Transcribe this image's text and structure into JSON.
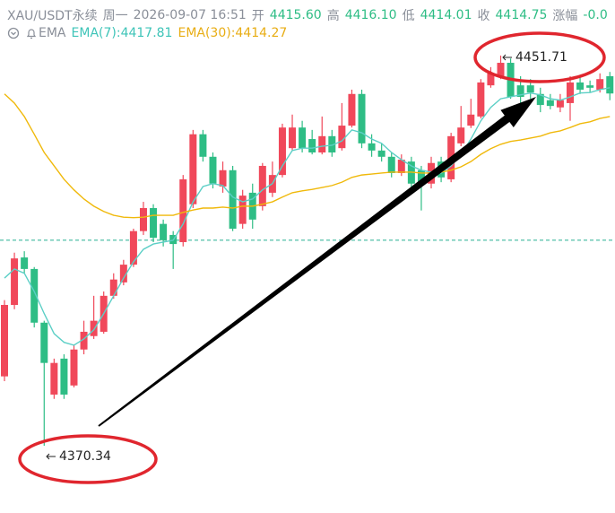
{
  "chart_data": {
    "type": "candlestick",
    "header": {
      "symbol": "XAU/USDT永续",
      "weekday": "周一",
      "time": "2026-09-07 16:51",
      "open_label": "开",
      "open": "4415.60",
      "high_label": "高",
      "high": "4416.10",
      "low_label": "低",
      "low": "4414.01",
      "close_label": "收",
      "close": "4414.75",
      "change_label": "涨幅",
      "change": "-0.0"
    },
    "indicator": {
      "name": "EMA",
      "ema7": "EMA(7):4417.81",
      "ema30": "EMA(30):4414.27"
    },
    "up_color": "#f0485a",
    "down_color": "#2ebd85",
    "open": [
      4384.8,
      4399.7,
      4409.6,
      4407.2,
      4396.0,
      4381.0,
      4388.5,
      4382.9,
      4390.4,
      4393.2,
      4394.1,
      4401.6,
      4404.4,
      4408.1,
      4415.1,
      4419.9,
      4416.6,
      4414.3,
      4412.8,
      4420.7,
      4435.3,
      4430.6,
      4424.4,
      4427.8,
      4416.6,
      4423.1,
      4420.3,
      4423.1,
      4426.8,
      4432.4,
      4436.7,
      4434.3,
      4431.5,
      4434.9,
      4432.4,
      4437.1,
      4443.7,
      4433.4,
      4431.9,
      4430.6,
      4427.2,
      4429.6,
      4427.8,
      4425.0,
      4429.6,
      4425.9,
      4433.4,
      4437.1,
      4439.0,
      4445.5,
      4447.4,
      4450.2,
      4445.5,
      4445.5,
      4443.7,
      4442.4,
      4440.9,
      4441.8,
      4446.1,
      4445.5,
      4444.6,
      4447.4
    ],
    "high": [
      4400.7,
      4410.6,
      4410.9,
      4407.6,
      4396.4,
      4388.5,
      4389.4,
      4391.3,
      4396.4,
      4401.6,
      4402.5,
      4406.3,
      4409.1,
      4415.6,
      4421.2,
      4420.7,
      4417.5,
      4415.1,
      4426.8,
      4436.2,
      4436.2,
      4431.5,
      4429.6,
      4428.7,
      4423.7,
      4425.0,
      4429.3,
      4429.6,
      4437.5,
      4439.4,
      4438.1,
      4436.2,
      4439.0,
      4436.2,
      4441.8,
      4444.6,
      4444.6,
      4435.3,
      4433.4,
      4431.5,
      4431.1,
      4430.6,
      4428.7,
      4430.6,
      4430.6,
      4435.6,
      4441.2,
      4442.7,
      4446.8,
      4449.3,
      4451.71,
      4451.1,
      4447.4,
      4446.8,
      4445.0,
      4443.7,
      4443.7,
      4447.4,
      4447.4,
      4446.5,
      4448.0,
      4448.3
    ],
    "low": [
      4383.8,
      4398.8,
      4406.3,
      4395.0,
      4370.34,
      4380.1,
      4380.1,
      4382.5,
      4389.4,
      4392.6,
      4393.7,
      4401.0,
      4403.8,
      4407.6,
      4414.3,
      4412.8,
      4411.9,
      4407.2,
      4411.9,
      4419.9,
      4429.6,
      4424.0,
      4423.1,
      4415.1,
      4415.6,
      4415.6,
      4419.4,
      4422.2,
      4426.3,
      4431.9,
      4431.5,
      4431.1,
      4431.1,
      4430.6,
      4431.9,
      4436.7,
      4432.4,
      4430.6,
      4429.6,
      4426.3,
      4426.6,
      4424.0,
      4419.4,
      4424.0,
      4425.3,
      4425.3,
      4432.8,
      4436.6,
      4438.6,
      4445.0,
      4446.8,
      4442.7,
      4441.8,
      4442.7,
      4439.9,
      4440.5,
      4439.9,
      4438.1,
      4443.7,
      4444.0,
      4444.0,
      4442.4
    ],
    "close": [
      4399.7,
      4409.4,
      4407.2,
      4396.0,
      4387.6,
      4387.6,
      4381.0,
      4390.4,
      4394.1,
      4396.4,
      4401.6,
      4405.0,
      4408.1,
      4415.1,
      4419.9,
      4413.7,
      4413.2,
      4412.4,
      4425.9,
      4435.3,
      4430.6,
      4425.0,
      4427.8,
      4415.6,
      4422.5,
      4417.5,
      4428.7,
      4426.8,
      4436.7,
      4436.7,
      4432.4,
      4431.5,
      4434.9,
      4431.5,
      4437.1,
      4443.7,
      4433.4,
      4431.9,
      4430.6,
      4427.2,
      4430.0,
      4425.0,
      4425.0,
      4429.3,
      4426.3,
      4434.9,
      4436.7,
      4439.4,
      4446.1,
      4448.0,
      4450.2,
      4443.1,
      4443.1,
      4444.0,
      4441.4,
      4441.2,
      4442.4,
      4446.1,
      4444.6,
      4445.0,
      4446.8,
      4443.8
    ],
    "series": [
      {
        "color": "#5ccfc6",
        "values": [
          4405.3,
          4407.2,
          4406.3,
          4402.5,
          4397.9,
          4393.7,
          4391.9,
          4391.3,
          4392.6,
          4394.5,
          4397.9,
          4401.6,
          4405.3,
          4408.7,
          4411.3,
          4412.4,
          4412.8,
          4413.2,
          4416.6,
          4421.2,
          4424.4,
          4425.0,
          4424.6,
          4422.2,
          4421.2,
          4421.8,
          4423.7,
          4425.0,
          4428.7,
          4431.9,
          4432.4,
          4432.4,
          4432.8,
          4433.0,
          4433.9,
          4436.2,
          4435.6,
          4434.3,
          4433.4,
          4431.5,
          4430.0,
          4428.7,
          4427.8,
          4427.4,
          4427.2,
          4428.7,
          4431.1,
          4434.3,
          4438.1,
          4440.9,
          4442.7,
          4443.1,
          4443.5,
          4443.9,
          4443.5,
          4442.7,
          4442.4,
          4443.1,
          4443.9,
          4444.0,
          4444.6,
          4445.0
        ]
      },
      {
        "color": "#f0b90b",
        "values": [
          4443.7,
          4441.8,
          4439.0,
          4435.3,
          4431.5,
          4428.7,
          4425.9,
          4423.7,
          4421.8,
          4420.3,
          4419.2,
          4418.4,
          4418.0,
          4417.9,
          4418.0,
          4418.4,
          4418.4,
          4418.4,
          4419.0,
          4419.5,
          4419.9,
          4419.9,
          4420.1,
          4419.9,
          4420.3,
          4420.3,
          4420.7,
          4421.2,
          4422.2,
          4423.1,
          4423.5,
          4423.8,
          4424.2,
          4424.6,
          4425.3,
          4426.3,
          4426.8,
          4427.0,
          4427.2,
          4427.4,
          4427.4,
          4427.4,
          4427.2,
          4427.2,
          4427.4,
          4427.8,
          4428.5,
          4429.6,
          4431.1,
          4432.3,
          4433.2,
          4433.8,
          4434.1,
          4434.5,
          4434.9,
          4435.6,
          4436.0,
          4436.7,
          4437.5,
          4437.9,
          4438.6,
          4439.0
        ]
      }
    ],
    "last_price_line": 4413.2,
    "ylim": [
      4356.3,
      4463.3
    ]
  }
}
